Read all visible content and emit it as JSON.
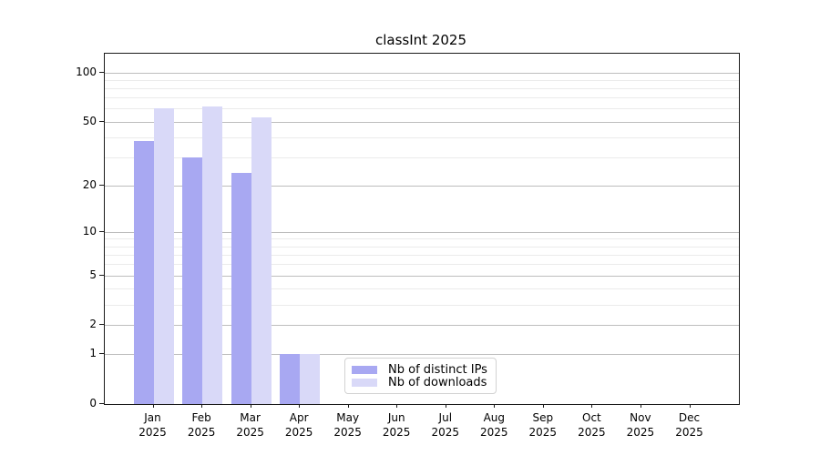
{
  "title": "classInt 2025",
  "colors": {
    "distinct_ips": "#a8a8f2",
    "downloads": "#d9d9f8",
    "grid_major": "#bdbdbd",
    "grid_minor": "#ebebeb",
    "axis": "#1a1a1a",
    "background": "#ffffff"
  },
  "legend": {
    "entries": [
      {
        "label": "Nb of distinct IPs",
        "color": "#a8a8f2"
      },
      {
        "label": "Nb of downloads",
        "color": "#d9d9f8"
      }
    ]
  },
  "chart_data": {
    "type": "bar",
    "title": "classInt 2025",
    "categories": [
      "Jan",
      "Feb",
      "Mar",
      "Apr",
      "May",
      "Jun",
      "Jul",
      "Aug",
      "Sep",
      "Oct",
      "Nov",
      "Dec"
    ],
    "category_year": "2025",
    "series": [
      {
        "name": "Nb of distinct IPs",
        "color": "#a8a8f2",
        "values": [
          38,
          30,
          24,
          1,
          0,
          0,
          0,
          0,
          0,
          0,
          0,
          0
        ]
      },
      {
        "name": "Nb of downloads",
        "color": "#d9d9f8",
        "values": [
          60,
          62,
          53,
          1,
          0,
          0,
          0,
          0,
          0,
          0,
          0,
          0
        ]
      }
    ],
    "xlabel": "",
    "ylabel": "",
    "yscale": "log1p",
    "ylim": [
      0,
      130
    ],
    "yticks": [
      0,
      1,
      2,
      5,
      10,
      20,
      50,
      100
    ],
    "yticks_minor": [
      3,
      4,
      6,
      7,
      8,
      9,
      30,
      40,
      60,
      70,
      80,
      90
    ],
    "grid": true,
    "legend_position": "lower center-left"
  }
}
